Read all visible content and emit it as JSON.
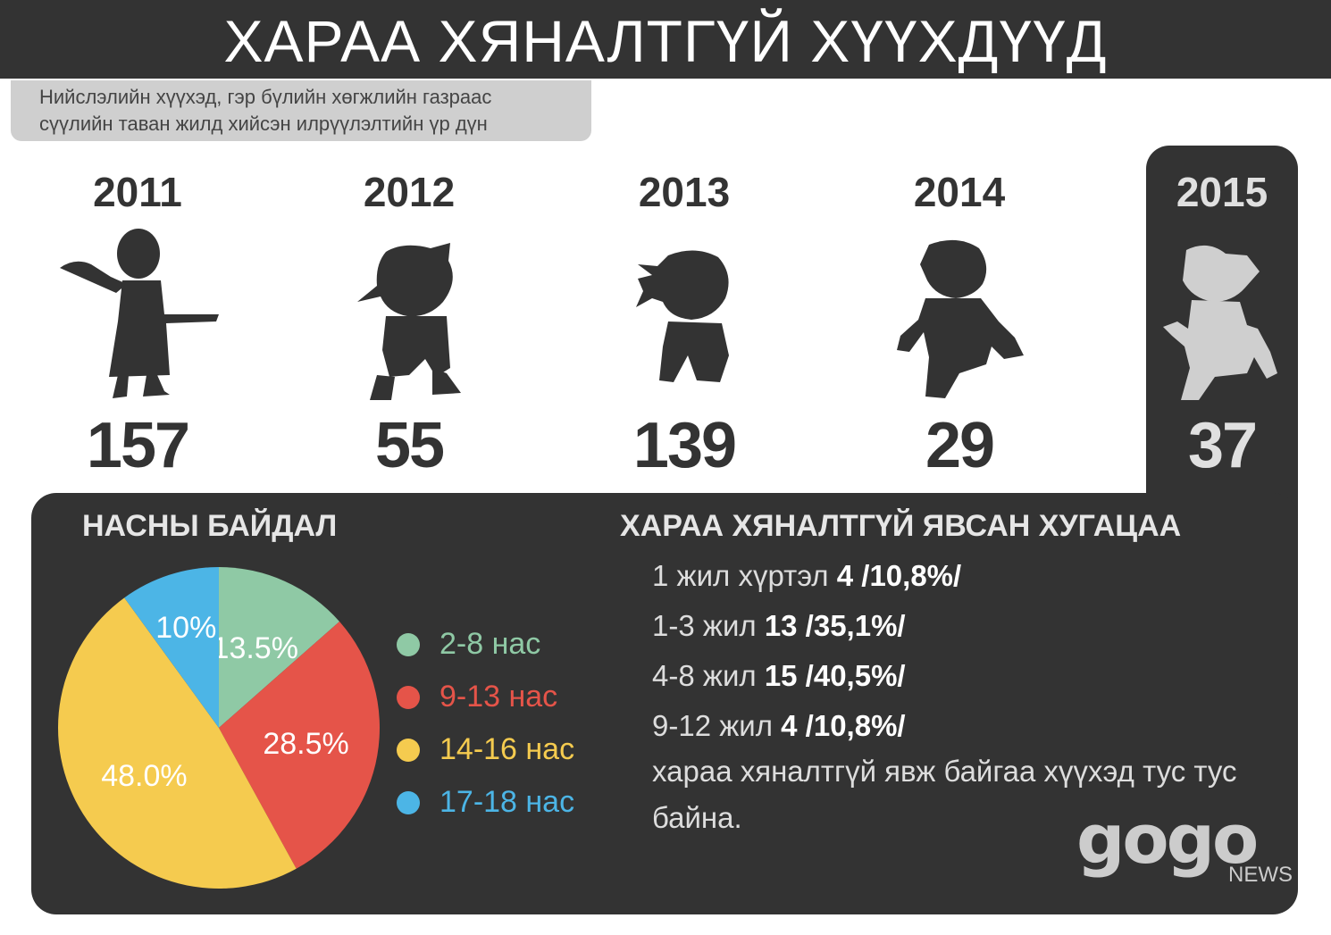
{
  "title": "ХАРАА ХЯНАЛТГҮЙ ХҮҮХДҮҮД",
  "subtitle": {
    "line1": "Нийслэлийн хүүхэд, гэр бүлийн хөгжлийн газраас",
    "line2": "сүүлийн таван жилд хийсэн илрүүлэлтийн үр дүн"
  },
  "years": [
    {
      "year": "2011",
      "count": "157",
      "icon": "child-silhouette-icon"
    },
    {
      "year": "2012",
      "count": "55",
      "icon": "child-silhouette-icon"
    },
    {
      "year": "2013",
      "count": "139",
      "icon": "child-silhouette-icon"
    },
    {
      "year": "2014",
      "count": "29",
      "icon": "child-silhouette-icon"
    },
    {
      "year": "2015",
      "count": "37",
      "icon": "child-silhouette-icon",
      "highlighted": true
    }
  ],
  "age_section": {
    "title": "НАСНЫ БАЙДАЛ"
  },
  "duration_section": {
    "title": "ХАРАА ХЯНАЛТГҮЙ ЯВСАН ХУГАЦАА",
    "rows": [
      {
        "label": "1 жил хүртэл",
        "value": "4 /10,8%/"
      },
      {
        "label": "1-3 жил",
        "value": "13 /35,1%/"
      },
      {
        "label": "4-8 жил",
        "value": "15 /40,5%/"
      },
      {
        "label": "9-12 жил",
        "value": "4 /10,8%/"
      }
    ],
    "note": "хараа хяналтгүй явж байгаа хүүхэд тус тус байна."
  },
  "logo": {
    "main": "gogo",
    "sub": "NEWS"
  },
  "colors": {
    "dark": "#333333",
    "green": "#8fc9a5",
    "red": "#e55449",
    "yellow": "#f5cb4f",
    "blue": "#4cb5e6"
  },
  "chart_data": [
    {
      "type": "bar",
      "categories": [
        "2011",
        "2012",
        "2013",
        "2014",
        "2015"
      ],
      "values": [
        157,
        55,
        139,
        29,
        37
      ]
    },
    {
      "type": "pie",
      "title": "НАСНЫ БАЙДАЛ",
      "slices": [
        {
          "label": "2-8 нас",
          "value": 13.5,
          "display": "13.5%",
          "color": "#8fc9a5"
        },
        {
          "label": "9-13 нас",
          "value": 28.5,
          "display": "28.5%",
          "color": "#e55449"
        },
        {
          "label": "14-16 нас",
          "value": 48.0,
          "display": "48.0%",
          "color": "#f5cb4f"
        },
        {
          "label": "17-18 нас",
          "value": 10.0,
          "display": "10%",
          "color": "#4cb5e6"
        }
      ]
    }
  ]
}
